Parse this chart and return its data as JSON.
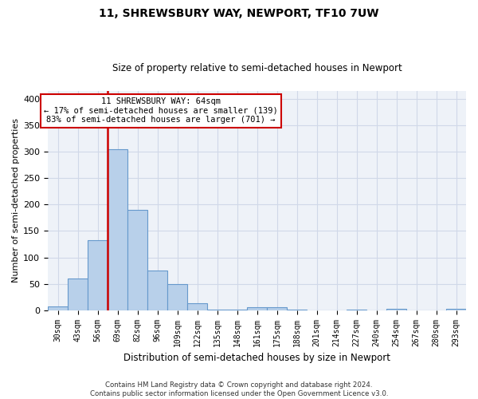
{
  "title": "11, SHREWSBURY WAY, NEWPORT, TF10 7UW",
  "subtitle": "Size of property relative to semi-detached houses in Newport",
  "xlabel": "Distribution of semi-detached houses by size in Newport",
  "ylabel": "Number of semi-detached properties",
  "bin_labels": [
    "30sqm",
    "43sqm",
    "56sqm",
    "69sqm",
    "82sqm",
    "96sqm",
    "109sqm",
    "122sqm",
    "135sqm",
    "148sqm",
    "161sqm",
    "175sqm",
    "188sqm",
    "201sqm",
    "214sqm",
    "227sqm",
    "240sqm",
    "254sqm",
    "267sqm",
    "280sqm",
    "293sqm"
  ],
  "bar_values": [
    7,
    60,
    132,
    305,
    190,
    75,
    50,
    13,
    1,
    1,
    5,
    5,
    1,
    0,
    0,
    1,
    0,
    3,
    0,
    0,
    2
  ],
  "bar_color": "#b8d0ea",
  "bar_edge_color": "#6699cc",
  "property_line_color": "#cc0000",
  "ylim": [
    0,
    415
  ],
  "yticks": [
    0,
    50,
    100,
    150,
    200,
    250,
    300,
    350,
    400
  ],
  "annotation_line1": "11 SHREWSBURY WAY: 64sqm",
  "annotation_line2": "← 17% of semi-detached houses are smaller (139)",
  "annotation_line3": "83% of semi-detached houses are larger (701) →",
  "annotation_box_color": "#cc0000",
  "footnote": "Contains HM Land Registry data © Crown copyright and database right 2024.\nContains public sector information licensed under the Open Government Licence v3.0.",
  "background_color": "#ffffff",
  "plot_bg_color": "#eef2f8",
  "grid_color": "#d0d8e8"
}
